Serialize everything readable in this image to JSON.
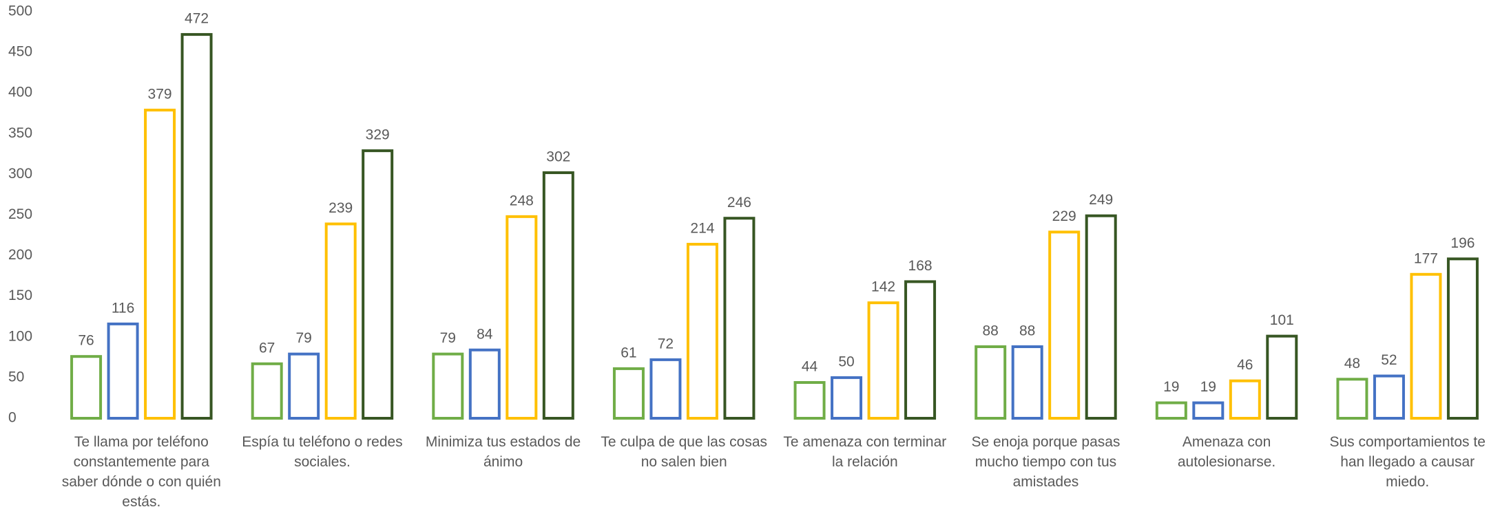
{
  "chart_data": {
    "type": "bar",
    "categories": [
      "Te llama por teléfono constantemente para saber dónde o con quién estás.",
      "Espía tu teléfono o redes sociales.",
      "Minimiza tus estados de ánimo",
      "Te culpa de que las cosas no salen bien",
      "Te amenaza con terminar la relación",
      "Se enoja porque pasas mucho tiempo con tus amistades",
      "Amenaza con autolesionarse.",
      "Sus comportamientos te han llegado a causar miedo."
    ],
    "series": [
      {
        "color": "#70ad47",
        "values": [
          76,
          67,
          79,
          61,
          44,
          88,
          19,
          48
        ]
      },
      {
        "color": "#4472c4",
        "values": [
          116,
          79,
          84,
          72,
          50,
          88,
          19,
          52
        ]
      },
      {
        "color": "#ffc000",
        "values": [
          379,
          239,
          248,
          214,
          142,
          229,
          46,
          177
        ]
      },
      {
        "color": "#375623",
        "values": [
          472,
          329,
          302,
          246,
          168,
          249,
          101,
          196
        ]
      }
    ],
    "ylim": [
      0,
      500
    ],
    "yticks": [
      0,
      50,
      100,
      150,
      200,
      250,
      300,
      350,
      400,
      450,
      500
    ]
  }
}
